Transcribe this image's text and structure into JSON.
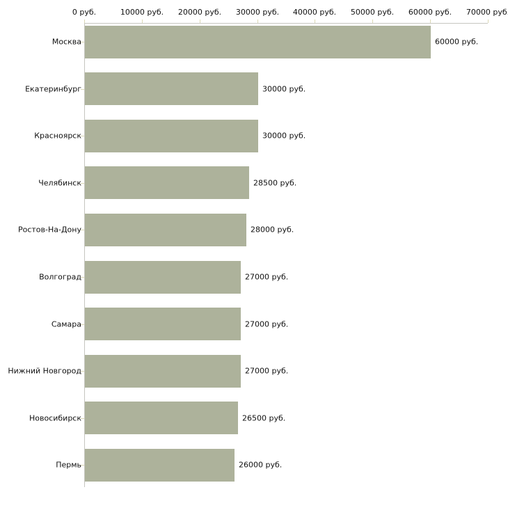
{
  "chart_data": {
    "type": "bar",
    "orientation": "horizontal",
    "categories": [
      "Москва",
      "Екатеринбург",
      "Красноярск",
      "Челябинск",
      "Ростов-На-Дону",
      "Волгоград",
      "Самара",
      "Нижний Новгород",
      "Новосибирск",
      "Пермь"
    ],
    "values": [
      60000,
      30000,
      30000,
      28500,
      28000,
      27000,
      27000,
      27000,
      26500,
      26000
    ],
    "value_labels": [
      "60000 руб.",
      "30000 руб.",
      "30000 руб.",
      "28500 руб.",
      "28000 руб.",
      "27000 руб.",
      "27000 руб.",
      "27000 руб.",
      "26500 руб.",
      "26000 руб."
    ],
    "x_tick_values": [
      0,
      10000,
      20000,
      30000,
      40000,
      50000,
      60000,
      70000
    ],
    "x_tick_labels": [
      "0 руб.",
      "10000 руб.",
      "20000 руб.",
      "30000 руб.",
      "40000 руб.",
      "50000 руб.",
      "60000 руб.",
      "70000 руб."
    ],
    "xlim": [
      0,
      70000
    ],
    "unit": "руб.",
    "grid": false,
    "legend": false,
    "axis_position": "top"
  },
  "colors": {
    "bar_fill": "#adb29b",
    "axis_line": "#c6c6c0",
    "tick_mark": "#dbd8b6",
    "label_text": "#111111",
    "background": "#ffffff"
  }
}
